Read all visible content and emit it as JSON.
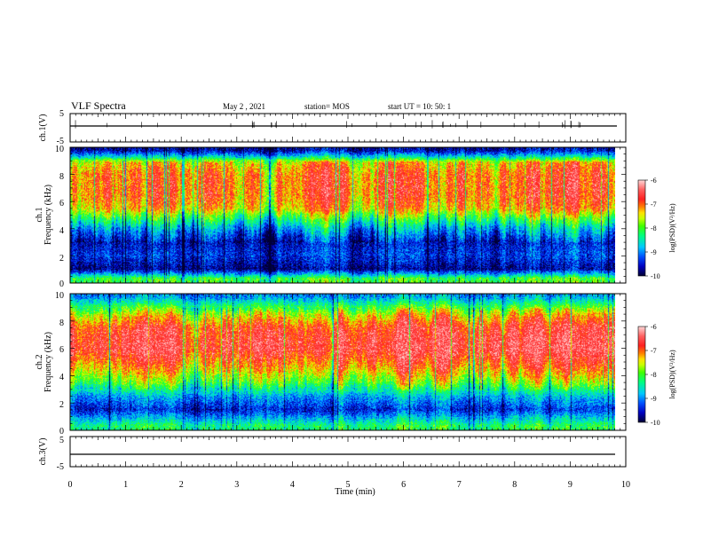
{
  "header": {
    "title": "VLF Spectra",
    "date": "May 2 , 2021",
    "station": "station= MOS",
    "start": "start UT = 10: 50: 1"
  },
  "colors": {
    "scale": [
      "#000033",
      "#0000c0",
      "#0050ff",
      "#00c8ff",
      "#00ff80",
      "#40ff00",
      "#c8ff00",
      "#ffe000",
      "#ff8000",
      "#ff2020",
      "#ff6060",
      "#ffd8d8"
    ]
  },
  "chart_data": [
    {
      "type": "line",
      "panel": "ch1-voltage",
      "ylabel": "ch.1(V)",
      "ylim": [
        -5,
        5
      ],
      "y_ticks": [
        "5",
        "-5"
      ],
      "x": [
        0,
        10
      ],
      "series": [
        {
          "values": [
            0,
            0
          ]
        }
      ]
    },
    {
      "type": "heatmap",
      "panel": "ch1-spectrogram",
      "ylabel": "ch.1\nFrequency (kHz)",
      "ylim": [
        0,
        10
      ],
      "y_ticks": [
        "0",
        "2",
        "4",
        "6",
        "8",
        "10"
      ],
      "colorbar": {
        "label": "log(PSD)(V²/Hz)",
        "range": [
          -10,
          -6
        ],
        "ticks": [
          "-6",
          "-7",
          "-8",
          "-9",
          "-10"
        ]
      },
      "spectrum_profile": [
        {
          "freq": 0.3,
          "log_psd": -8.0
        },
        {
          "freq": 1.0,
          "log_psd": -9.7
        },
        {
          "freq": 2.0,
          "log_psd": -9.3
        },
        {
          "freq": 3.0,
          "log_psd": -9.5
        },
        {
          "freq": 4.0,
          "log_psd": -8.8
        },
        {
          "freq": 4.8,
          "log_psd": -8.0
        },
        {
          "freq": 5.5,
          "log_psd": -7.2
        },
        {
          "freq": 6.5,
          "log_psd": -6.9
        },
        {
          "freq": 8.0,
          "log_psd": -6.9
        },
        {
          "freq": 8.9,
          "log_psd": -7.3
        },
        {
          "freq": 9.3,
          "log_psd": -8.5
        },
        {
          "freq": 9.8,
          "log_psd": -9.6
        }
      ]
    },
    {
      "type": "heatmap",
      "panel": "ch2-spectrogram",
      "ylabel": "ch.2\nFrequency (kHz)",
      "ylim": [
        0,
        10
      ],
      "y_ticks": [
        "0",
        "2",
        "4",
        "6",
        "8",
        "10"
      ],
      "colorbar": {
        "label": "log(PSD)(V²/Hz)",
        "range": [
          -10,
          -6
        ],
        "ticks": [
          "-6",
          "-7",
          "-8",
          "-9",
          "-10"
        ]
      },
      "spectrum_profile": [
        {
          "freq": 0.3,
          "log_psd": -8.2
        },
        {
          "freq": 1.5,
          "log_psd": -9.4
        },
        {
          "freq": 2.5,
          "log_psd": -8.8
        },
        {
          "freq": 3.5,
          "log_psd": -7.8
        },
        {
          "freq": 4.5,
          "log_psd": -7.1
        },
        {
          "freq": 6.0,
          "log_psd": -6.3
        },
        {
          "freq": 7.5,
          "log_psd": -6.6
        },
        {
          "freq": 8.5,
          "log_psd": -7.4
        },
        {
          "freq": 9.2,
          "log_psd": -8.2
        },
        {
          "freq": 9.8,
          "log_psd": -8.9
        }
      ]
    },
    {
      "type": "line",
      "panel": "ch3-voltage",
      "ylabel": "ch.3(V)",
      "ylim": [
        -5,
        5
      ],
      "y_ticks": [
        "5",
        "-5"
      ],
      "x": [
        0,
        10
      ],
      "series": [
        {
          "values": [
            -1.5,
            -1.5
          ]
        }
      ]
    }
  ],
  "x_axis": {
    "label": "Time (min)",
    "ticks": [
      "0",
      "1",
      "2",
      "3",
      "4",
      "5",
      "6",
      "7",
      "8",
      "9",
      "10"
    ],
    "range": [
      0,
      10
    ],
    "data_end": 9.85
  }
}
